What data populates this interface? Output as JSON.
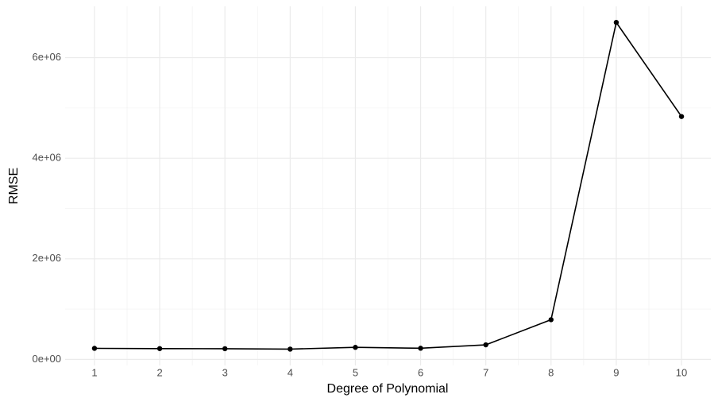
{
  "chart_data": {
    "type": "line",
    "x_label": "Degree of Polynomial",
    "y_label": "RMSE",
    "x": [
      1,
      2,
      3,
      4,
      5,
      6,
      7,
      8,
      9,
      10
    ],
    "series": [
      {
        "color": "#000000",
        "values": [
          220000,
          215000,
          213000,
          205000,
          240000,
          222000,
          290000,
          790000,
          6700000,
          4830000
        ]
      }
    ],
    "xlim": [
      0.55,
      10.45
    ],
    "ylim": [
      -120000,
      7020000
    ],
    "xticks": [
      1,
      2,
      3,
      4,
      5,
      6,
      7,
      8,
      9,
      10
    ],
    "yticks": [
      {
        "value": 0,
        "label": "0e+00"
      },
      {
        "value": 2000000,
        "label": "2e+06"
      },
      {
        "value": 4000000,
        "label": "4e+06"
      },
      {
        "value": 6000000,
        "label": "6e+06"
      }
    ],
    "grid": true,
    "minor_grid": true
  }
}
